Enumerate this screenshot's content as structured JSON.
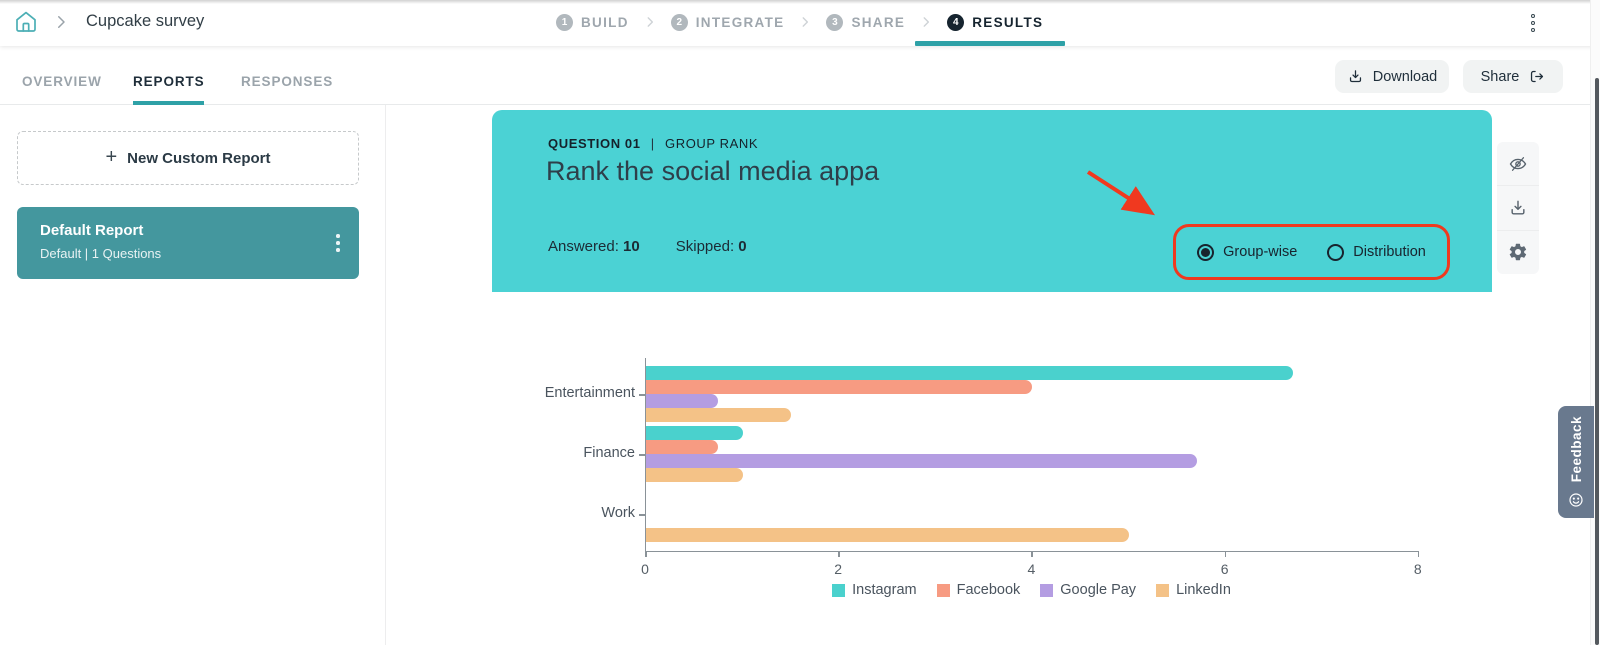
{
  "topbar": {
    "breadcrumb": "Cupcake survey",
    "steps": [
      {
        "num": "1",
        "label": "BUILD",
        "active": false
      },
      {
        "num": "2",
        "label": "INTEGRATE",
        "active": false
      },
      {
        "num": "3",
        "label": "SHARE",
        "active": false
      },
      {
        "num": "4",
        "label": "RESULTS",
        "active": true
      }
    ]
  },
  "tabs": [
    {
      "label": "OVERVIEW",
      "active": false
    },
    {
      "label": "REPORTS",
      "active": true
    },
    {
      "label": "RESPONSES",
      "active": false
    }
  ],
  "actions": {
    "download": "Download",
    "share": "Share"
  },
  "sidebar": {
    "new_report_label": "New Custom Report",
    "plus": "+",
    "report": {
      "title": "Default Report",
      "subtitle": "Default  |  1 Questions"
    }
  },
  "question": {
    "number_label": "QUESTION 01",
    "divider": "|",
    "type_label": "GROUP RANK",
    "title": "Rank the social media appa",
    "answered_label": "Answered:",
    "answered_value": "10",
    "skipped_label": "Skipped:",
    "skipped_value": "0",
    "view_options": [
      {
        "label": "Group-wise",
        "selected": true
      },
      {
        "label": "Distribution",
        "selected": false
      }
    ]
  },
  "side_tools": {
    "icons": [
      "eye-off",
      "download",
      "settings"
    ]
  },
  "feedback_tab": {
    "label": "Feedback"
  },
  "colors": {
    "accent_teal": "#2EA1A7",
    "header_teal": "#4BD2D4",
    "report_card_teal": "#44979E",
    "annotation_red": "#F0391F",
    "feedback_blue": "#69798E"
  },
  "chart_data": {
    "type": "bar",
    "orientation": "horizontal",
    "title": "",
    "categories": [
      "Entertainment",
      "Finance",
      "Work"
    ],
    "series": [
      {
        "name": "Instagram",
        "color": "#4AD1CD",
        "values": [
          6.7,
          1.0,
          0
        ]
      },
      {
        "name": "Facebook",
        "color": "#F79B82",
        "values": [
          4.0,
          0.75,
          0
        ]
      },
      {
        "name": "Google Pay",
        "color": "#B49DE2",
        "values": [
          0.75,
          5.7,
          0
        ]
      },
      {
        "name": "LinkedIn",
        "color": "#F4C287",
        "values": [
          1.5,
          1.0,
          5.0
        ]
      }
    ],
    "xlim": [
      0,
      8
    ],
    "xticks": [
      0,
      2,
      4,
      6,
      8
    ],
    "legend_position": "bottom",
    "grid": false
  }
}
